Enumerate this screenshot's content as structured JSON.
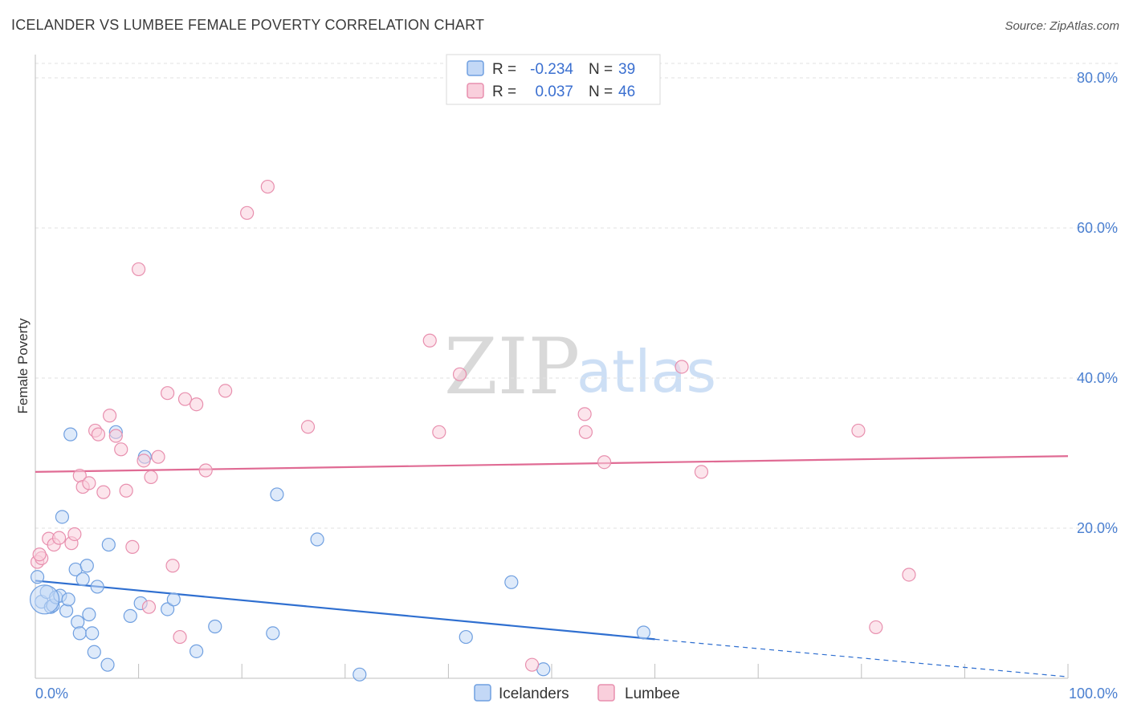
{
  "header": {
    "title": "ICELANDER VS LUMBEE FEMALE POVERTY CORRELATION CHART",
    "source": "Source: ZipAtlas.com"
  },
  "watermark": {
    "part1": "ZIP",
    "part2": "atlas"
  },
  "legend": {
    "rows": [
      {
        "r_label": "R =",
        "r_value": "-0.234",
        "n_label": "N =",
        "n_value": "39",
        "color": "#6f9fe0",
        "fill": "#c3d8f6"
      },
      {
        "r_label": "R =",
        "r_value": "0.037",
        "n_label": "N =",
        "n_value": "46",
        "color": "#e88fae",
        "fill": "#f9cfdc"
      }
    ]
  },
  "bottom_legend": [
    {
      "label": "Icelanders",
      "color": "#6f9fe0",
      "fill": "#c3d8f6"
    },
    {
      "label": "Lumbee",
      "color": "#e88fae",
      "fill": "#f9cfdc"
    }
  ],
  "chart_data": {
    "type": "scatter",
    "title": "ICELANDER VS LUMBEE FEMALE POVERTY CORRELATION CHART",
    "xlabel": "",
    "ylabel": "Female Poverty",
    "xlim": [
      0,
      100
    ],
    "ylim": [
      0,
      80
    ],
    "y_ticks": [
      {
        "value": 20,
        "label": "20.0%"
      },
      {
        "value": 40,
        "label": "40.0%"
      },
      {
        "value": 60,
        "label": "60.0%"
      },
      {
        "value": 80,
        "label": "80.0%"
      }
    ],
    "x_tick_labels": {
      "min": "0.0%",
      "max": "100.0%"
    },
    "x_minor_ticks": [
      10,
      20,
      30,
      40,
      50,
      60,
      70,
      80,
      90,
      100
    ],
    "grid": true,
    "series": [
      {
        "name": "Icelanders",
        "color": "#6f9fe0",
        "fill": "#c3d8f6",
        "line_color": "#2f6fd0",
        "trend": {
          "x0": 0,
          "y0": 13.0,
          "x1": 60,
          "y1": 5.2,
          "dash_to_x": 100,
          "dash_to_y": 0.2
        },
        "points": [
          [
            0.2,
            13.5
          ],
          [
            0.6,
            10.2
          ],
          [
            1.1,
            11.5
          ],
          [
            1.5,
            9.5
          ],
          [
            1.7,
            9.7
          ],
          [
            2.0,
            10.8
          ],
          [
            2.4,
            11.0
          ],
          [
            2.6,
            21.5
          ],
          [
            3.0,
            9.0
          ],
          [
            3.2,
            10.5
          ],
          [
            3.4,
            32.5
          ],
          [
            3.9,
            14.5
          ],
          [
            4.1,
            7.5
          ],
          [
            4.3,
            6.0
          ],
          [
            4.6,
            13.2
          ],
          [
            5.0,
            15.0
          ],
          [
            5.2,
            8.5
          ],
          [
            5.5,
            6.0
          ],
          [
            5.7,
            3.5
          ],
          [
            6.0,
            12.2
          ],
          [
            7.0,
            1.8
          ],
          [
            7.1,
            17.8
          ],
          [
            7.8,
            32.8
          ],
          [
            9.2,
            8.3
          ],
          [
            10.2,
            10.0
          ],
          [
            10.6,
            29.5
          ],
          [
            12.8,
            9.2
          ],
          [
            13.4,
            10.5
          ],
          [
            15.6,
            3.6
          ],
          [
            17.4,
            6.9
          ],
          [
            23.0,
            6.0
          ],
          [
            23.4,
            24.5
          ],
          [
            27.3,
            18.5
          ],
          [
            31.4,
            0.5
          ],
          [
            41.7,
            5.5
          ],
          [
            46.1,
            12.8
          ],
          [
            49.2,
            1.2
          ],
          [
            58.9,
            6.1
          ],
          [
            0.9,
            10.5
          ]
        ]
      },
      {
        "name": "Lumbee",
        "color": "#e88fae",
        "fill": "#f9cfdc",
        "line_color": "#e06b94",
        "trend": {
          "x0": 0,
          "y0": 27.5,
          "x1": 100,
          "y1": 29.6
        },
        "points": [
          [
            0.2,
            15.5
          ],
          [
            0.6,
            16.0
          ],
          [
            1.3,
            18.6
          ],
          [
            1.8,
            17.8
          ],
          [
            2.3,
            18.7
          ],
          [
            3.5,
            18.0
          ],
          [
            3.8,
            19.2
          ],
          [
            4.3,
            27.0
          ],
          [
            4.6,
            25.5
          ],
          [
            5.2,
            26.0
          ],
          [
            5.8,
            33.0
          ],
          [
            6.1,
            32.5
          ],
          [
            6.6,
            24.8
          ],
          [
            7.2,
            35.0
          ],
          [
            7.8,
            32.3
          ],
          [
            8.3,
            30.5
          ],
          [
            8.8,
            25.0
          ],
          [
            9.4,
            17.5
          ],
          [
            10.0,
            54.5
          ],
          [
            10.5,
            29.0
          ],
          [
            11.0,
            9.5
          ],
          [
            11.2,
            26.8
          ],
          [
            11.9,
            29.5
          ],
          [
            12.8,
            38.0
          ],
          [
            13.3,
            15.0
          ],
          [
            14.0,
            5.5
          ],
          [
            14.5,
            37.2
          ],
          [
            15.6,
            36.5
          ],
          [
            16.5,
            27.7
          ],
          [
            18.4,
            38.3
          ],
          [
            20.5,
            62.0
          ],
          [
            22.5,
            65.5
          ],
          [
            26.4,
            33.5
          ],
          [
            38.2,
            45.0
          ],
          [
            39.1,
            32.8
          ],
          [
            41.1,
            40.5
          ],
          [
            48.1,
            1.8
          ],
          [
            53.2,
            35.2
          ],
          [
            53.3,
            32.8
          ],
          [
            55.1,
            28.8
          ],
          [
            62.6,
            41.5
          ],
          [
            64.5,
            27.5
          ],
          [
            79.7,
            33.0
          ],
          [
            81.4,
            6.8
          ],
          [
            84.6,
            13.8
          ],
          [
            0.4,
            16.5
          ]
        ]
      }
    ]
  }
}
